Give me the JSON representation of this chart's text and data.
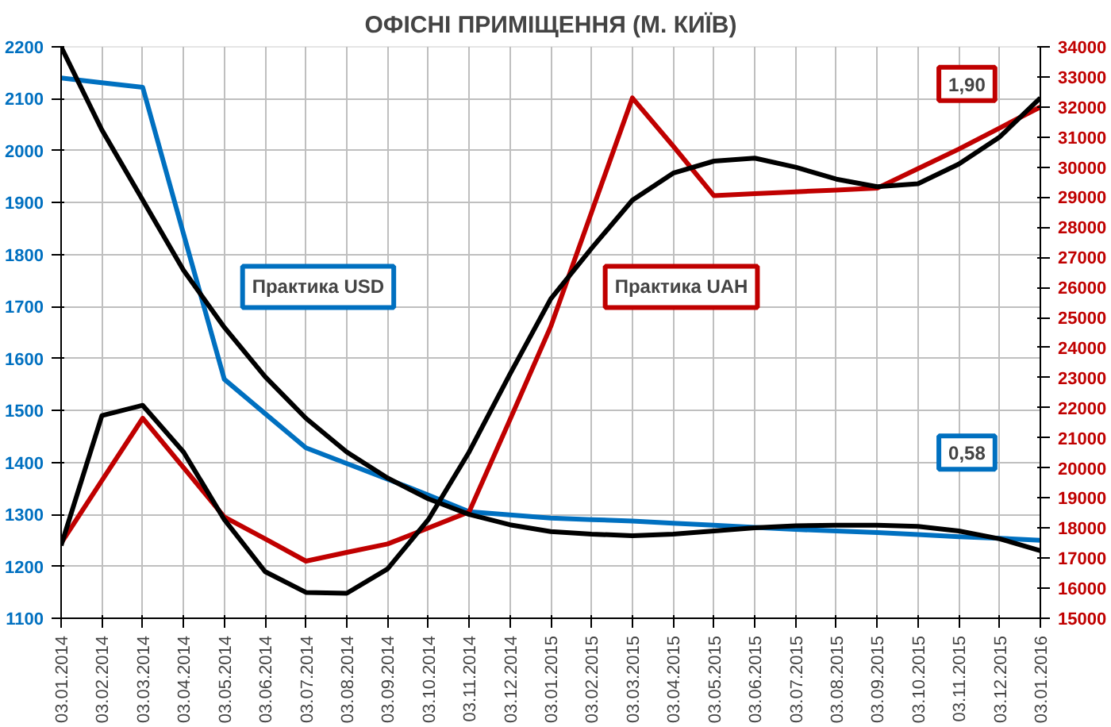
{
  "chart_data": {
    "type": "line",
    "title": "ОФІСНІ ПРИМІЩЕННЯ (М. КИЇВ)",
    "categories": [
      "03.01.2014",
      "03.02.2014",
      "03.03.2014",
      "03.04.2014",
      "03.05.2014",
      "03.06.2014",
      "03.07.2014",
      "03.08.2014",
      "03.09.2014",
      "03.10.2014",
      "03.11.2014",
      "03.12.2014",
      "03.01.2015",
      "03.02.2015",
      "03.03.2015",
      "03.04.2015",
      "03.05.2015",
      "03.06.2015",
      "03.07.2015",
      "03.08.2015",
      "03.09.2015",
      "03.10.2015",
      "03.11.2015",
      "03.12.2015",
      "03.01.2016"
    ],
    "series": [
      {
        "name": "Практика USD",
        "color": "#0070c0",
        "values": [
          2140,
          2131,
          2122,
          1840,
          1560,
          1494,
          1428,
          1398,
          1368,
          1337,
          1305,
          1299,
          1293,
          1290,
          1287,
          1283,
          1279,
          1275,
          1271,
          1268,
          1265,
          1261,
          1257,
          1254,
          1250
        ]
      },
      {
        "name": "Практика UAH",
        "color": "#c00000",
        "axis": "y2",
        "values": [
          17500,
          19580,
          21650,
          20010,
          18370,
          17640,
          16900,
          17190,
          17470,
          18000,
          18540,
          21600,
          24700,
          28500,
          32300,
          30700,
          29050,
          29120,
          29180,
          29240,
          29300,
          29950,
          30600,
          31300,
          32000
        ]
      },
      {
        "color": "#000000",
        "values": [
          2200,
          2040,
          1905,
          1770,
          1660,
          1565,
          1485,
          1420,
          1370,
          1330,
          1300,
          1280,
          1267,
          1262,
          1259,
          1262,
          1268,
          1274,
          1278,
          1279,
          1279,
          1277,
          1268,
          1253,
          1230
        ]
      },
      {
        "color": "#000000",
        "axis": "y2",
        "values": [
          17420,
          21740,
          22080,
          20530,
          18280,
          16550,
          15860,
          15830,
          16640,
          18280,
          20530,
          23120,
          25620,
          27300,
          28900,
          29800,
          30200,
          30300,
          30000,
          29600,
          29350,
          29450,
          30100,
          31000,
          32300
        ]
      }
    ],
    "ylim": [
      1100,
      2200
    ],
    "yticks": [
      1100,
      1200,
      1300,
      1400,
      1500,
      1600,
      1700,
      1800,
      1900,
      2000,
      2100,
      2200
    ],
    "y2lim": [
      15000,
      34000
    ],
    "y2ticks": [
      15000,
      16000,
      17000,
      18000,
      19000,
      20000,
      21000,
      22000,
      23000,
      24000,
      25000,
      26000,
      27000,
      28000,
      29000,
      30000,
      31000,
      32000,
      33000,
      34000
    ],
    "annotations": [
      "1,90",
      "0,58"
    ],
    "grid": true
  }
}
